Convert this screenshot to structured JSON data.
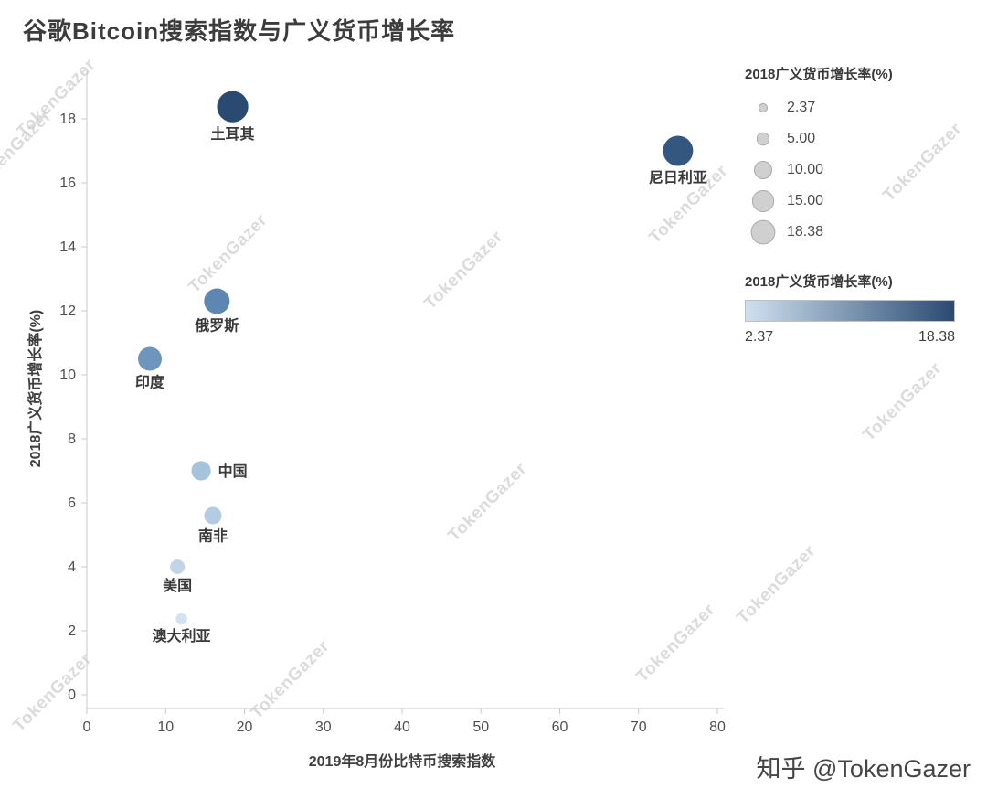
{
  "title": "谷歌Bitcoin搜索指数与广义货币增长率",
  "watermark_text": "TokenGazer",
  "credit": "知乎 @TokenGazer",
  "colors": {
    "axis_line": "#c9c9c9",
    "tick_label": "#4f4f4f",
    "axis_title": "#3f3f3f",
    "point_label": "#3a3a3a",
    "legend_circle_fill": "#d0d0d0",
    "legend_circle_stroke": "#ababab"
  },
  "chart_data": {
    "type": "scatter",
    "title": "谷歌Bitcoin搜索指数与广义货币增长率",
    "xlabel": "2019年8月份比特币搜索指数",
    "ylabel": "2018广义货币增长率(%)",
    "xlim": [
      0,
      80
    ],
    "ylim": [
      0,
      19
    ],
    "x_ticks": [
      0,
      10,
      20,
      30,
      40,
      50,
      60,
      70,
      80
    ],
    "y_ticks": [
      0,
      2,
      4,
      6,
      8,
      10,
      12,
      14,
      16,
      18
    ],
    "grid": false,
    "size_encoding": "2018广义货币增长率(%)",
    "color_encoding": "2018广义货币增长率(%)",
    "points": [
      {
        "label": "土耳其",
        "x": 18.5,
        "y": 18.38,
        "value": 18.38,
        "color": "#2b4a72",
        "label_side": "below"
      },
      {
        "label": "尼日利亚",
        "x": 75,
        "y": 17.0,
        "value": 17.0,
        "color": "#34577f",
        "label_side": "below"
      },
      {
        "label": "俄罗斯",
        "x": 16.5,
        "y": 12.3,
        "value": 12.3,
        "color": "#5d86b0",
        "label_side": "below"
      },
      {
        "label": "印度",
        "x": 8,
        "y": 10.5,
        "value": 10.5,
        "color": "#6e95bd",
        "label_side": "below"
      },
      {
        "label": "中国",
        "x": 14.5,
        "y": 7.0,
        "value": 7.0,
        "color": "#a6c3dc",
        "label_side": "right"
      },
      {
        "label": "南非",
        "x": 16,
        "y": 5.6,
        "value": 5.6,
        "color": "#b3cce2",
        "label_side": "below"
      },
      {
        "label": "美国",
        "x": 11.5,
        "y": 4.0,
        "value": 4.0,
        "color": "#c0d5e7",
        "label_side": "below"
      },
      {
        "label": "澳大利亚",
        "x": 12,
        "y": 2.37,
        "value": 2.37,
        "color": "#d2e2f0",
        "label_side": "below"
      }
    ],
    "legend_size": {
      "title": "2018广义货币增长率(%)",
      "entries": [
        "2.37",
        "5.00",
        "10.00",
        "15.00",
        "18.38"
      ],
      "entry_values": [
        2.37,
        5.0,
        10.0,
        15.0,
        18.38
      ]
    },
    "legend_color": {
      "title": "2018广义货币增长率(%)",
      "min_label": "2.37",
      "max_label": "18.38",
      "min_color": "#cfe0ef",
      "max_color": "#2b4a72"
    }
  }
}
